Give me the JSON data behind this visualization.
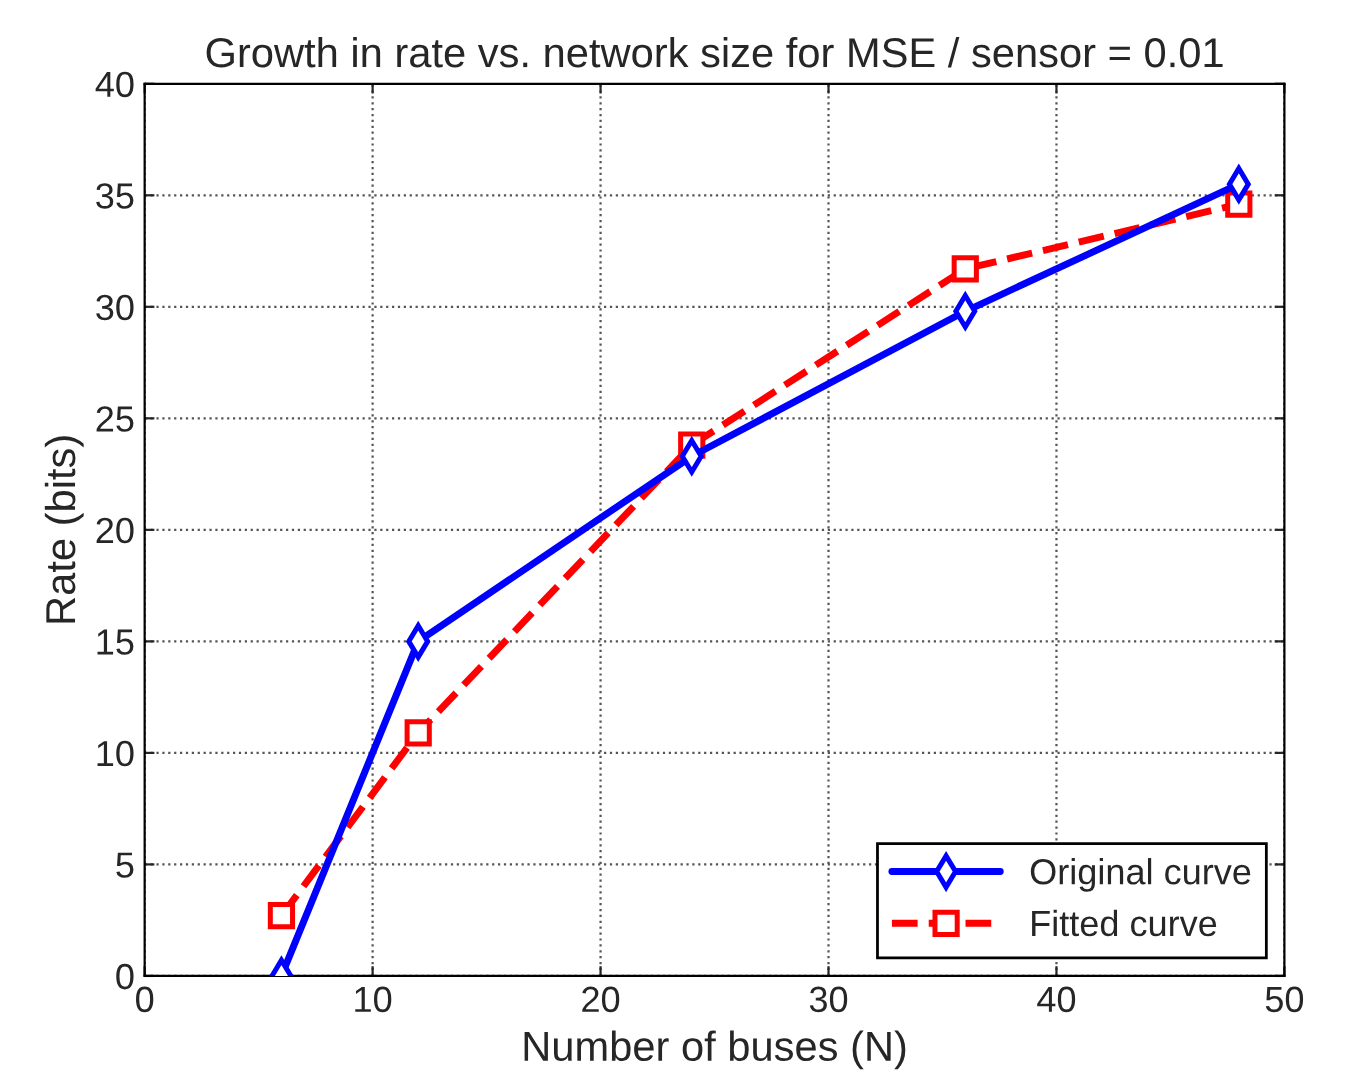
{
  "chart_data": {
    "type": "line",
    "title": "Growth in rate vs. network size for MSE / sensor = 0.01",
    "xlabel": "Number of buses (N)",
    "ylabel": "Rate (bits)",
    "x": [
      6,
      12,
      24,
      36,
      48
    ],
    "series": [
      {
        "name": "Original curve",
        "color": "#0000ff",
        "values": [
          0,
          15,
          23.3,
          29.8,
          35.5
        ],
        "marker": "diamond",
        "line_style": "solid"
      },
      {
        "name": "Fitted curve",
        "color": "#ff0000",
        "values": [
          2.7,
          10.9,
          23.8,
          31.7,
          34.6
        ],
        "marker": "square",
        "line_style": "dashed"
      }
    ],
    "xlim": [
      0,
      50
    ],
    "xticks": [
      0,
      10,
      20,
      30,
      40,
      50
    ],
    "ylim": [
      0,
      40
    ],
    "yticks": [
      0,
      5,
      10,
      15,
      20,
      25,
      30,
      35,
      40
    ],
    "grid": true,
    "legend": "bottom right"
  }
}
